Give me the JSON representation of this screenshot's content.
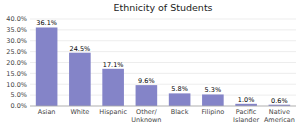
{
  "chart_data": {
    "type": "bar",
    "title": "Ethnicity of Students",
    "categories": [
      "Asian",
      "White",
      "Hispanic",
      "Other/\nUnknown",
      "Black",
      "Filipino",
      "Pacific\nIslander",
      "Native\nAmerican"
    ],
    "values": [
      36.1,
      24.5,
      17.1,
      9.6,
      5.8,
      5.3,
      1.0,
      0.6
    ],
    "value_labels": [
      "36.1%",
      "24.5%",
      "17.1%",
      "9.6%",
      "5.8%",
      "5.3%",
      "1.0%",
      "0.6%"
    ],
    "data_labels": true,
    "color": "#8484c8",
    "ylim": [
      0,
      40.0
    ],
    "yticks": [
      {
        "value": 0.0,
        "label": "0.0%"
      },
      {
        "value": 5.0,
        "label": "5.0%"
      },
      {
        "value": 10.0,
        "label": "10.0%"
      },
      {
        "value": 15.0,
        "label": "15.0%"
      },
      {
        "value": 20.0,
        "label": "20.0%"
      },
      {
        "value": 25.0,
        "label": "25.0%"
      },
      {
        "value": 30.0,
        "label": "30.0%"
      },
      {
        "value": 35.0,
        "label": "35.0%"
      },
      {
        "value": 40.0,
        "label": "40.0%"
      }
    ],
    "grid": true
  }
}
